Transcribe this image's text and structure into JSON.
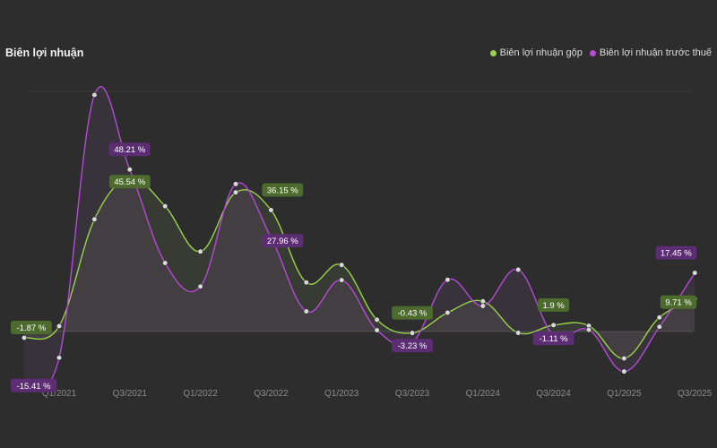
{
  "chart_data": {
    "type": "line",
    "title": "Biên lợi nhuận",
    "x": [
      "Q1/2021",
      "Q2/2021",
      "Q3/2021",
      "Q4/2021",
      "Q1/2022",
      "Q2/2022",
      "Q3/2022",
      "Q4/2022",
      "Q1/2023",
      "Q2/2023",
      "Q3/2023",
      "Q4/2023",
      "Q1/2024",
      "Q2/2024",
      "Q3/2024",
      "Q4/2024",
      "Q1/2025",
      "Q2/2025",
      "Q3/2025"
    ],
    "x_tick_labels": [
      "Q1/2021",
      "Q3/2021",
      "Q1/2022",
      "Q3/2022",
      "Q1/2023",
      "Q3/2023",
      "Q1/2024",
      "Q3/2024",
      "Q1/2025",
      "Q3/2025"
    ],
    "leading_values": {
      "gross": -1.87,
      "pretax": -15.41
    },
    "series": [
      {
        "name": "Biên lợi nhuận gộp",
        "color": "#9ad44a",
        "label_bg": "#4d6b2c",
        "values": [
          1.6,
          33.4,
          45.54,
          37.3,
          23.8,
          41.4,
          36.15,
          14.6,
          19.8,
          3.5,
          -0.43,
          5.6,
          9.0,
          -0.4,
          1.9,
          1.7,
          -8.0,
          4.2,
          9.71
        ]
      },
      {
        "name": "Biên lợi nhuận trước thuế",
        "color": "#b44ad6",
        "label_bg": "#5c2d72",
        "values": [
          -7.8,
          70.4,
          48.21,
          20.4,
          13.4,
          43.9,
          27.96,
          6.0,
          15.3,
          0.4,
          -3.23,
          15.4,
          7.6,
          18.4,
          -1.11,
          0.5,
          -11.9,
          1.4,
          17.45
        ]
      }
    ],
    "labels": [
      {
        "series": 0,
        "index": -1,
        "text": "-1.87 %"
      },
      {
        "series": 1,
        "index": -1,
        "text": "-15.41 %"
      },
      {
        "series": 1,
        "index": 2,
        "text": "48.21 %"
      },
      {
        "series": 0,
        "index": 2,
        "text": "45.54 %"
      },
      {
        "series": 0,
        "index": 6,
        "text": "36.15 %"
      },
      {
        "series": 1,
        "index": 6,
        "text": "27.96 %"
      },
      {
        "series": 0,
        "index": 10,
        "text": "-0.43 %"
      },
      {
        "series": 1,
        "index": 10,
        "text": "-3.23 %"
      },
      {
        "series": 0,
        "index": 14,
        "text": "1.9 %"
      },
      {
        "series": 1,
        "index": 14,
        "text": "-1.11 %"
      },
      {
        "series": 1,
        "index": 18,
        "text": "17.45 %"
      },
      {
        "series": 0,
        "index": 18,
        "text": "9.71 %"
      }
    ],
    "ylim": [
      -20,
      80
    ],
    "grid": "horizontal",
    "legend_position": "top-right",
    "xlabel": "",
    "ylabel": ""
  }
}
